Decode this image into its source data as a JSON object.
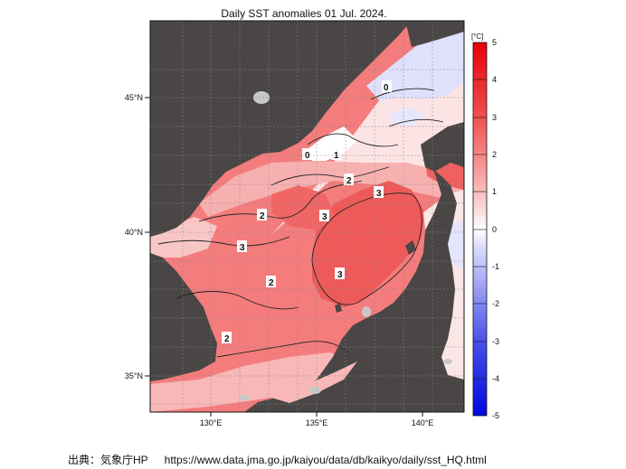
{
  "title": "Daily SST anomalies 01 Jul. 2024.",
  "colorbar": {
    "unit": "[°C]",
    "ticks": [
      "5",
      "4",
      "3",
      "2",
      "1",
      "0",
      "-1",
      "-2",
      "-3",
      "-4",
      "-5"
    ],
    "colors": {
      "deep_red": "#e8000a",
      "red": "#f05050",
      "light_red": "#f8a0a0",
      "pale_red": "#fcdada",
      "white": "#ffffff",
      "pale_blue": "#dadcfc",
      "light_blue": "#a0a4f4",
      "blue": "#4a50e8",
      "deep_blue": "#0008e0"
    }
  },
  "axes": {
    "lat_labels": [
      "45°N",
      "40°N",
      "35°N"
    ],
    "lon_labels": [
      "130°E",
      "135°E",
      "140°E"
    ]
  },
  "contour_labels": [
    "0",
    "0",
    "1",
    "2",
    "3",
    "2",
    "3",
    "3",
    "2",
    "3",
    "2"
  ],
  "colors": {
    "land": "#4a4646",
    "lake": "#c8c8c8",
    "sea_base": "#f47c7c",
    "frame": "#111111"
  },
  "source": {
    "label": "出典：気象庁HP",
    "url": "https://www.data.jma.go.jp/kaiyou/data/db/kaikyo/daily/sst_HQ.html"
  }
}
